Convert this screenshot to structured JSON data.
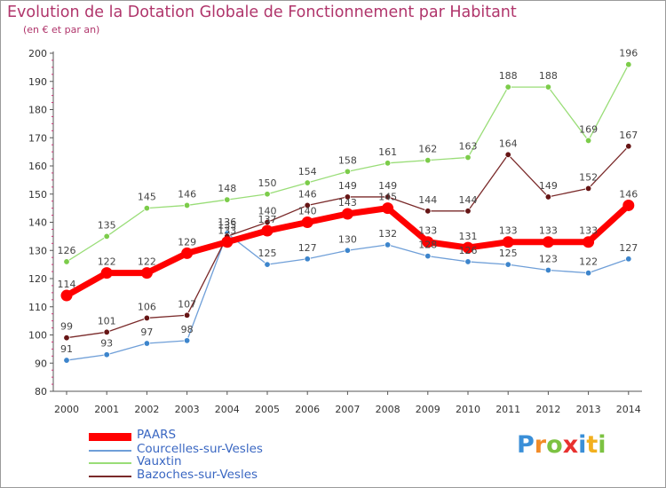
{
  "chart_data": {
    "type": "line",
    "title": "Evolution de la Dotation Globale de Fonctionnement par Habitant",
    "subtitle": "(en € et par an)",
    "xlabel": "",
    "ylabel": "",
    "x": [
      "2000",
      "2001",
      "2002",
      "2003",
      "2004",
      "2005",
      "2006",
      "2007",
      "2008",
      "2009",
      "2010",
      "2011",
      "2012",
      "2013",
      "2014"
    ],
    "ylim": [
      80,
      200
    ],
    "yticks": [
      "80",
      "90",
      "100",
      "110",
      "120",
      "130",
      "140",
      "150",
      "160",
      "170",
      "180",
      "190",
      "200"
    ],
    "grid": false,
    "legend_position": "bottom-left",
    "series": [
      {
        "name": "PAARS",
        "color": "#ff0000",
        "point_color": "#ff0000",
        "values": [
          114,
          122,
          122,
          129,
          133,
          137,
          140,
          143,
          145,
          133,
          131,
          133,
          133,
          133,
          146
        ],
        "labels": [
          "114",
          "122",
          "122",
          "129",
          "133",
          "137",
          "140",
          "143",
          "145",
          "133",
          "131",
          "133",
          "133",
          "133",
          "146"
        ]
      },
      {
        "name": "Courcelles-sur-Vesles",
        "color": "#6f9fd8",
        "point_color": "#3d85cc",
        "values": [
          91,
          93,
          97,
          98,
          136,
          125,
          127,
          130,
          132,
          128,
          126,
          125,
          123,
          122,
          127
        ],
        "labels": [
          "91",
          "93",
          "97",
          "98",
          "136",
          "125",
          "127",
          "130",
          "132",
          "128",
          "126",
          "125",
          "123",
          "122",
          "127"
        ]
      },
      {
        "name": "Vauxtin",
        "color": "#99dd77",
        "point_color": "#7ccc4a",
        "values": [
          126,
          135,
          145,
          146,
          148,
          150,
          154,
          158,
          161,
          162,
          163,
          188,
          188,
          169,
          196
        ],
        "labels": [
          "126",
          "135",
          "145",
          "146",
          "148",
          "150",
          "154",
          "158",
          "161",
          "162",
          "163",
          "188",
          "188",
          "169",
          "196"
        ]
      },
      {
        "name": "Bazoches-sur-Vesles",
        "color": "#7a2a2a",
        "point_color": "#661515",
        "values": [
          99,
          101,
          106,
          107,
          135,
          140,
          146,
          149,
          149,
          144,
          144,
          164,
          149,
          152,
          167
        ],
        "labels": [
          "99",
          "101",
          "106",
          "107",
          "135",
          "140",
          "146",
          "149",
          "149",
          "144",
          "144",
          "164",
          "149",
          "152",
          "167"
        ]
      }
    ]
  },
  "logo": {
    "letters": [
      "P",
      "r",
      "o",
      "x",
      "i",
      "t",
      "i"
    ],
    "colors": [
      "#3a8fd8",
      "#f28c28",
      "#7cc242",
      "#e8312f",
      "#3a8fd8",
      "#f2b01e",
      "#7cc242"
    ]
  }
}
